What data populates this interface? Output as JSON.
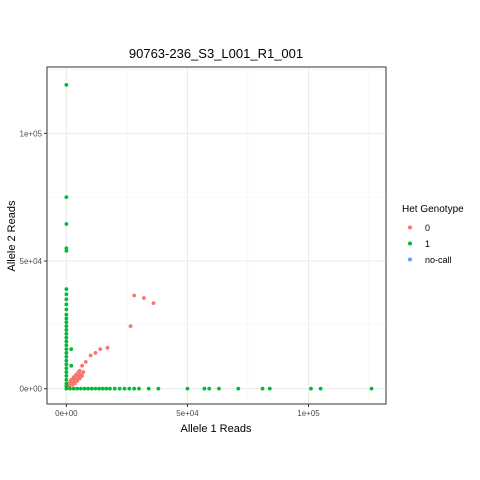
{
  "chart_data": {
    "type": "scatter",
    "title": "90763-236_S3_L001_R1_001",
    "xlabel": "Allele 1 Reads",
    "ylabel": "Allele 2 Reads",
    "xlim": [
      -8000,
      132000
    ],
    "ylim": [
      -6000,
      126000
    ],
    "x_ticks": [
      {
        "value": 0,
        "label": "0e+00"
      },
      {
        "value": 50000,
        "label": "5e+04"
      },
      {
        "value": 100000,
        "label": "1e+05"
      }
    ],
    "y_ticks": [
      {
        "value": 0,
        "label": "0e+00"
      },
      {
        "value": 50000,
        "label": "5e+04"
      },
      {
        "value": 100000,
        "label": "1e+05"
      }
    ],
    "grid": true,
    "legend": {
      "title": "Het Genotype",
      "position": "right",
      "entries": [
        {
          "label": "0",
          "color": "#F8766D"
        },
        {
          "label": "1",
          "color": "#00BA38"
        },
        {
          "label": "no-call",
          "color": "#619CFF"
        }
      ]
    },
    "series": [
      {
        "name": "0",
        "color": "#F8766D",
        "points": [
          [
            28000,
            36500
          ],
          [
            32000,
            35500
          ],
          [
            36000,
            33500
          ],
          [
            26500,
            24500
          ],
          [
            17000,
            16000
          ],
          [
            14000,
            15500
          ],
          [
            12000,
            14000
          ],
          [
            10000,
            13000
          ],
          [
            8000,
            10500
          ],
          [
            6500,
            9000
          ],
          [
            5500,
            7000
          ],
          [
            7000,
            6500
          ],
          [
            6000,
            5500
          ],
          [
            5000,
            5000
          ],
          [
            4500,
            4500
          ],
          [
            4000,
            4000
          ],
          [
            3500,
            3500
          ],
          [
            3000,
            3000
          ],
          [
            2500,
            2500
          ],
          [
            2000,
            2000
          ],
          [
            1500,
            1500
          ],
          [
            1000,
            1000
          ],
          [
            5500,
            4000
          ],
          [
            4000,
            5500
          ],
          [
            3000,
            4500
          ],
          [
            4500,
            3000
          ],
          [
            2000,
            3500
          ],
          [
            3500,
            2000
          ],
          [
            6500,
            5000
          ],
          [
            5000,
            6500
          ],
          [
            1500,
            2500
          ],
          [
            2500,
            1500
          ]
        ]
      },
      {
        "name": "1",
        "color": "#00BA38",
        "points": [
          [
            0,
            119000
          ],
          [
            0,
            75000
          ],
          [
            0,
            64500
          ],
          [
            0,
            55000
          ],
          [
            0,
            54000
          ],
          [
            0,
            39000
          ],
          [
            0,
            37000
          ],
          [
            0,
            35000
          ],
          [
            0,
            33000
          ],
          [
            0,
            31000
          ],
          [
            0,
            29000
          ],
          [
            0,
            27500
          ],
          [
            0,
            26000
          ],
          [
            0,
            24500
          ],
          [
            0,
            23000
          ],
          [
            0,
            21500
          ],
          [
            0,
            20000
          ],
          [
            0,
            18500
          ],
          [
            0,
            17000
          ],
          [
            0,
            15500
          ],
          [
            0,
            14000
          ],
          [
            0,
            12500
          ],
          [
            0,
            11000
          ],
          [
            0,
            9500
          ],
          [
            0,
            8000
          ],
          [
            0,
            6500
          ],
          [
            0,
            5000
          ],
          [
            0,
            3500
          ],
          [
            0,
            2000
          ],
          [
            0,
            1000
          ],
          [
            0,
            0
          ],
          [
            2000,
            15500
          ],
          [
            2000,
            9000
          ],
          [
            1500,
            0
          ],
          [
            3000,
            0
          ],
          [
            4500,
            0
          ],
          [
            6000,
            0
          ],
          [
            7500,
            0
          ],
          [
            9000,
            0
          ],
          [
            10500,
            0
          ],
          [
            12000,
            0
          ],
          [
            13500,
            0
          ],
          [
            15000,
            0
          ],
          [
            16500,
            0
          ],
          [
            18000,
            0
          ],
          [
            20000,
            0
          ],
          [
            22000,
            0
          ],
          [
            24000,
            0
          ],
          [
            26000,
            0
          ],
          [
            28000,
            0
          ],
          [
            30000,
            0
          ],
          [
            34000,
            0
          ],
          [
            38000,
            0
          ],
          [
            50000,
            0
          ],
          [
            57000,
            0
          ],
          [
            59000,
            0
          ],
          [
            63000,
            0
          ],
          [
            71000,
            0
          ],
          [
            81000,
            0
          ],
          [
            84000,
            0
          ],
          [
            101000,
            0
          ],
          [
            105000,
            0
          ],
          [
            126000,
            0
          ]
        ]
      },
      {
        "name": "no-call",
        "color": "#619CFF",
        "points": []
      }
    ]
  }
}
